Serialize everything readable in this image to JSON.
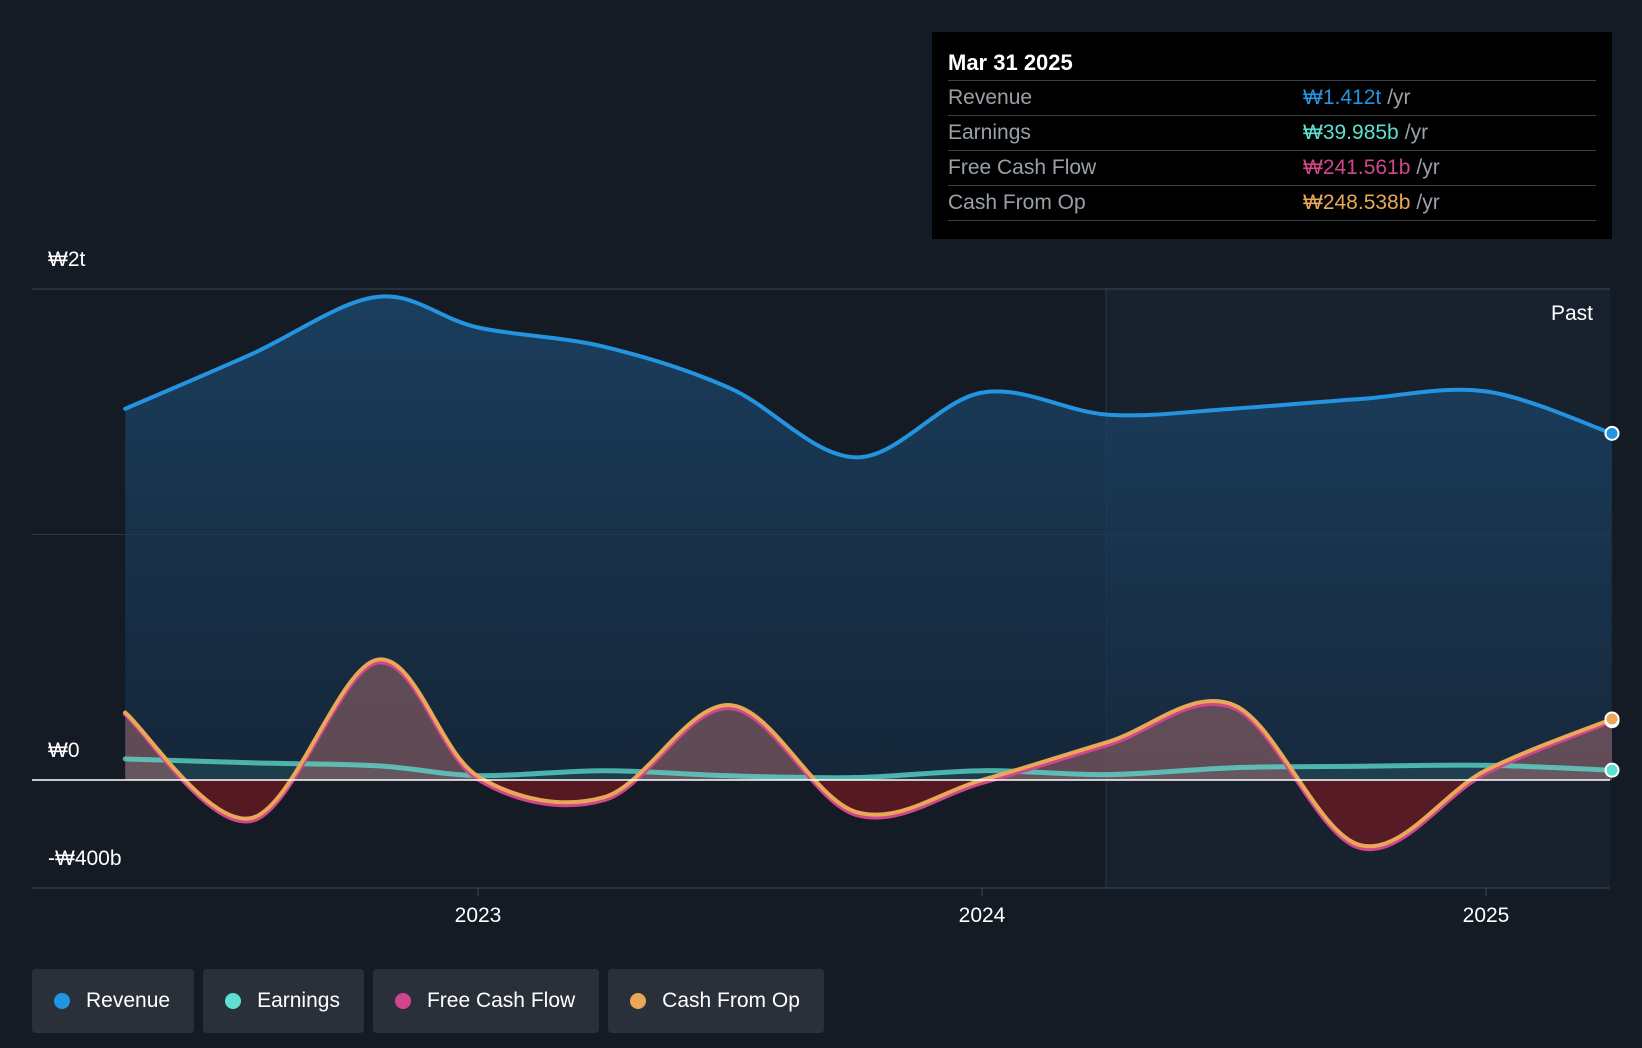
{
  "chart_data": {
    "type": "area",
    "y_ticks": [
      "₩2t",
      "₩0",
      "-₩400b"
    ],
    "x_ticks": [
      "2023",
      "2024",
      "2025"
    ],
    "ylim": [
      -400,
      2000
    ],
    "y_unit": "billion KRW",
    "region_label": "Past",
    "grid": true,
    "x": [
      2022.3,
      2022.55,
      2022.8,
      2023.0,
      2023.25,
      2023.5,
      2023.75,
      2024.0,
      2024.25,
      2024.5,
      2024.75,
      2025.0,
      2025.25
    ],
    "series": [
      {
        "name": "Revenue",
        "color": "#2394df",
        "values": [
          1512,
          1734,
          1968,
          1843,
          1765,
          1596,
          1314,
          1578,
          1488,
          1513,
          1552,
          1583,
          1412
        ]
      },
      {
        "name": "Earnings",
        "color": "#5ee0d0",
        "values": [
          86,
          70,
          58,
          18,
          38,
          17,
          10,
          38,
          22,
          50,
          56,
          60,
          39.985
        ]
      },
      {
        "name": "Free Cash Flow",
        "color": "#d0468c",
        "values": [
          270,
          -165,
          480,
          5,
          -80,
          295,
          -140,
          -10,
          145,
          295,
          -275,
          30,
          241.561
        ]
      },
      {
        "name": "Cash From Op",
        "color": "#e8a857",
        "values": [
          275,
          -155,
          490,
          15,
          -70,
          305,
          -130,
          0,
          155,
          305,
          -265,
          40,
          248.538
        ]
      }
    ]
  },
  "tooltip": {
    "date": "Mar 31 2025",
    "rows": [
      {
        "label": "Revenue",
        "value": "₩1.412t",
        "unit": "/yr",
        "color": "#2394df"
      },
      {
        "label": "Earnings",
        "value": "₩39.985b",
        "unit": "/yr",
        "color": "#5ee0d0"
      },
      {
        "label": "Free Cash Flow",
        "value": "₩241.561b",
        "unit": "/yr",
        "color": "#d0468c"
      },
      {
        "label": "Cash From Op",
        "value": "₩248.538b",
        "unit": "/yr",
        "color": "#e8a857"
      }
    ]
  },
  "legend": [
    {
      "label": "Revenue",
      "color": "#2394df"
    },
    {
      "label": "Earnings",
      "color": "#5ee0d0"
    },
    {
      "label": "Free Cash Flow",
      "color": "#d0468c"
    },
    {
      "label": "Cash From Op",
      "color": "#e8a857"
    }
  ]
}
